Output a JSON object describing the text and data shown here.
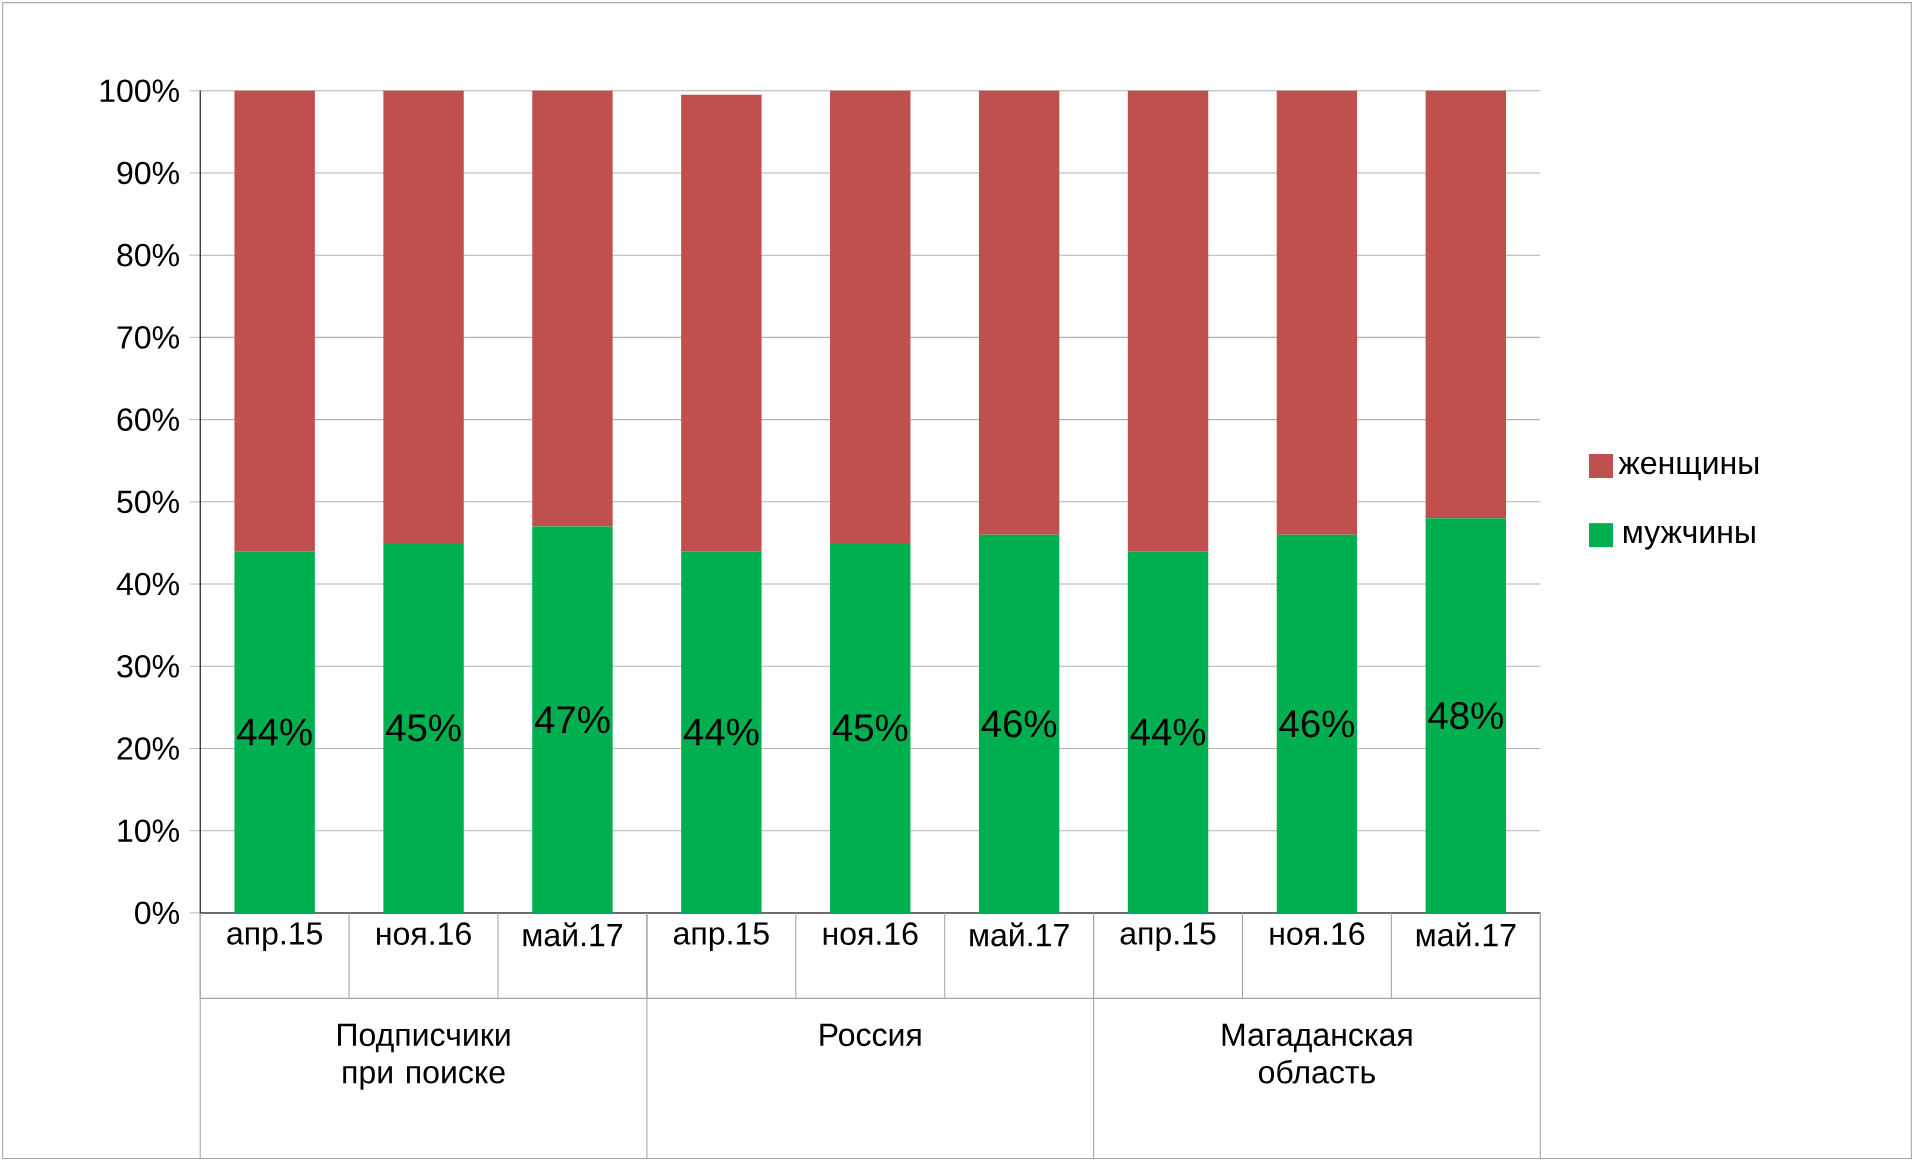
{
  "chart_data": {
    "type": "bar",
    "stacked": true,
    "categories": [
      "апр.15",
      "ноя.16",
      "май.17",
      "апр.15",
      "ноя.16",
      "май.17",
      "апр.15",
      "ноя.16",
      "май.17"
    ],
    "series": [
      {
        "name": "мужчины",
        "color": "#00b050",
        "values": [
          44,
          45,
          47,
          44,
          45,
          46,
          44,
          46,
          48
        ],
        "value_labels": [
          "44%",
          "45%",
          "47%",
          "44%",
          "45%",
          "46%",
          "44%",
          "46%",
          "48%"
        ]
      },
      {
        "name": "женщины",
        "color": "#c0504d",
        "values": [
          56,
          55,
          53,
          55.5,
          55,
          54,
          56,
          54,
          52
        ]
      }
    ],
    "ylim": [
      0,
      100
    ],
    "yticks": [
      {
        "value": 0,
        "label": "0%"
      },
      {
        "value": 10,
        "label": "10%"
      },
      {
        "value": 20,
        "label": "20%"
      },
      {
        "value": 30,
        "label": "30%"
      },
      {
        "value": 40,
        "label": "40%"
      },
      {
        "value": 50,
        "label": "50%"
      },
      {
        "value": 60,
        "label": "60%"
      },
      {
        "value": 70,
        "label": "70%"
      },
      {
        "value": 80,
        "label": "80%"
      },
      {
        "value": 90,
        "label": "90%"
      },
      {
        "value": 100,
        "label": "100%"
      }
    ],
    "grid": "y",
    "legend": "right",
    "annotations": [
      "Подписчики при поиске",
      "Россия",
      "Магаданская область"
    ]
  }
}
